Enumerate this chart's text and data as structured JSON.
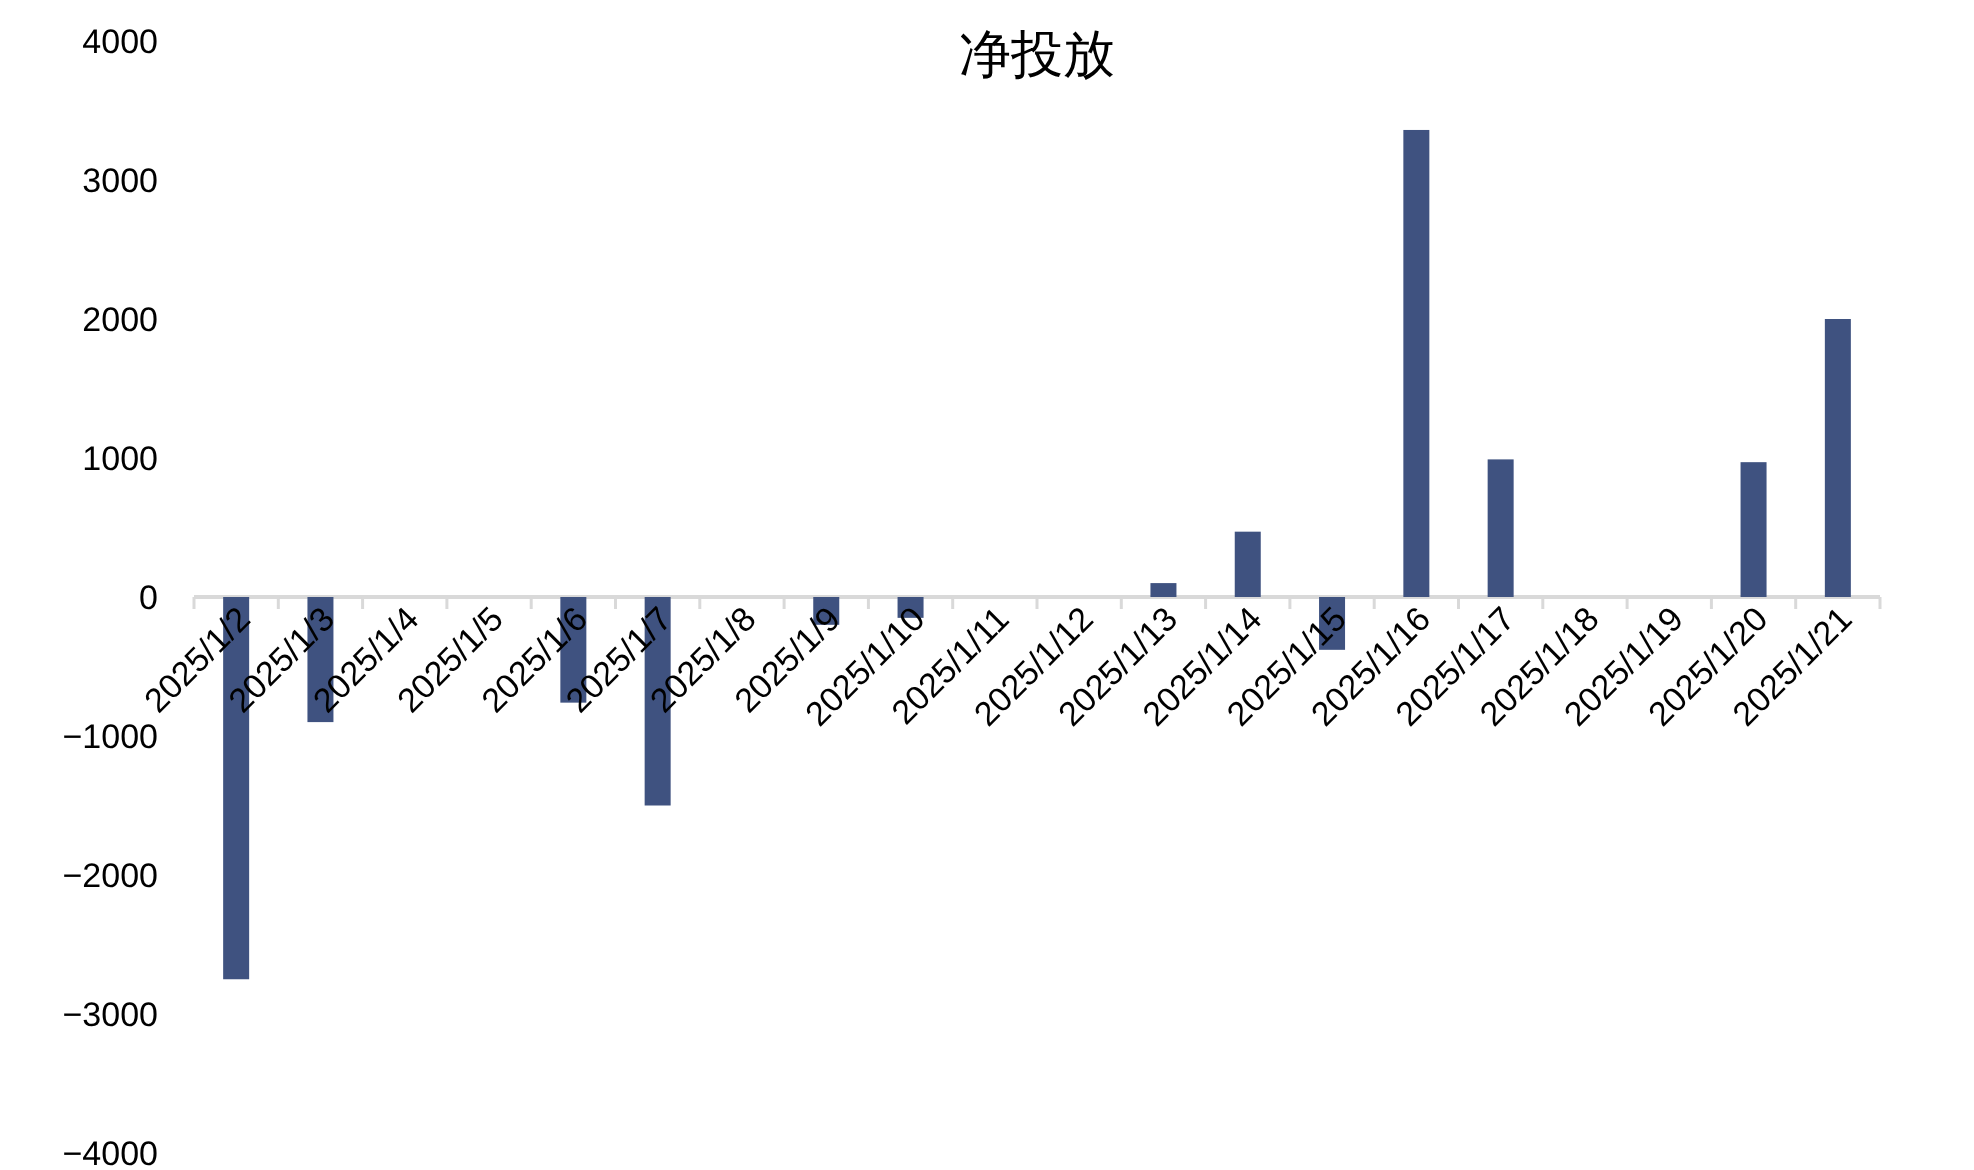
{
  "chart_data": {
    "type": "bar",
    "title": "净投放",
    "categories": [
      "2025/1/2",
      "2025/1/3",
      "2025/1/4",
      "2025/1/5",
      "2025/1/6",
      "2025/1/7",
      "2025/1/8",
      "2025/1/9",
      "2025/1/10",
      "2025/1/11",
      "2025/1/12",
      "2025/1/13",
      "2025/1/14",
      "2025/1/15",
      "2025/1/16",
      "2025/1/17",
      "2025/1/18",
      "2025/1/19",
      "2025/1/20",
      "2025/1/21"
    ],
    "values": [
      -2750,
      -900,
      null,
      null,
      -760,
      -1500,
      null,
      -200,
      -150,
      null,
      null,
      100,
      470,
      -380,
      3360,
      990,
      null,
      null,
      970,
      2000
    ],
    "color": "#3f5280",
    "ylim": [
      -4000,
      4000
    ],
    "yticks": [
      -4000,
      -3000,
      -2000,
      -1000,
      0,
      1000,
      2000,
      3000,
      4000
    ],
    "grid": false
  }
}
